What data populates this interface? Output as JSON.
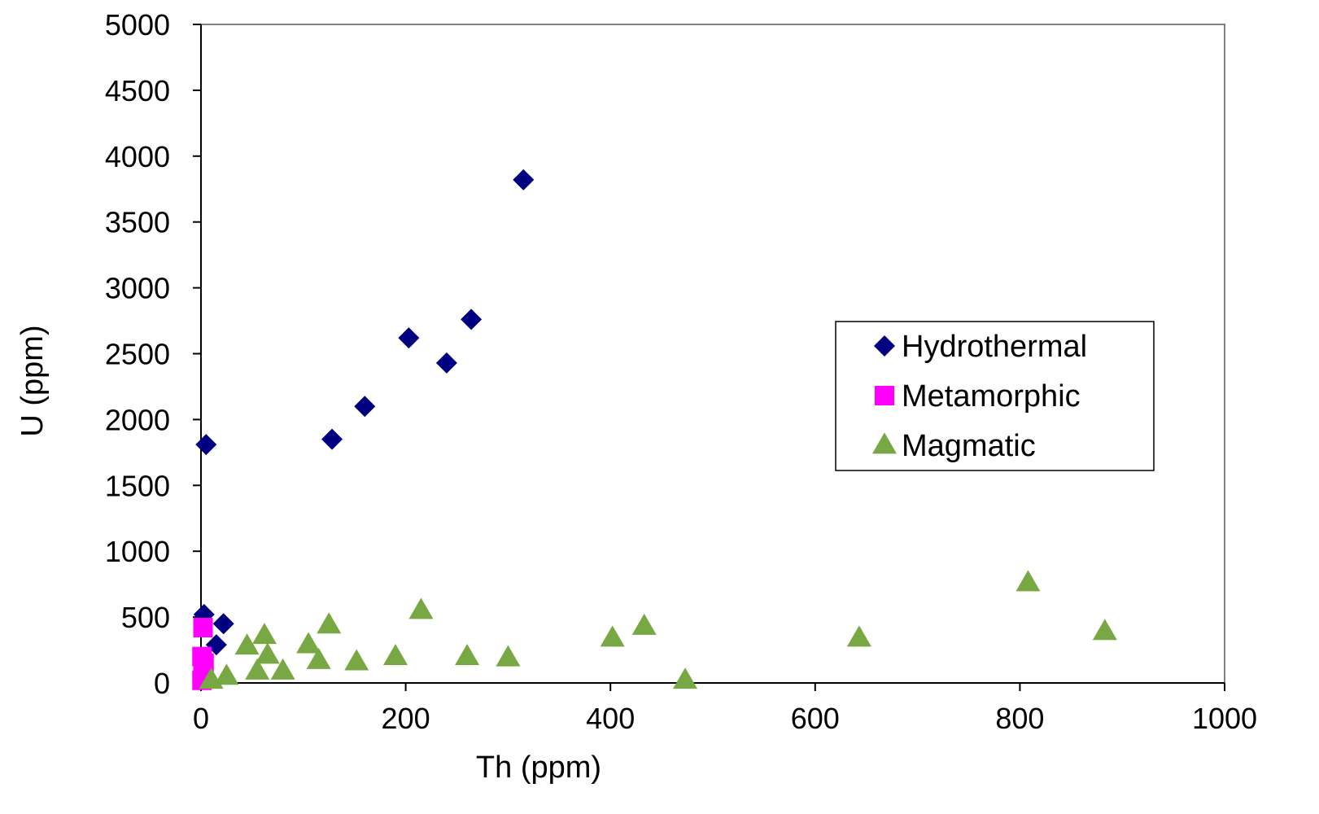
{
  "chart_data": {
    "type": "scatter",
    "xlabel": "Th (ppm)",
    "ylabel": "U (ppm)",
    "xlim": [
      0,
      1000
    ],
    "ylim": [
      0,
      5000
    ],
    "xticks": [
      0,
      200,
      400,
      600,
      800,
      1000
    ],
    "yticks": [
      0,
      500,
      1000,
      1500,
      2000,
      2500,
      3000,
      3500,
      4000,
      4500,
      5000
    ],
    "grid": false,
    "legend_position": "right",
    "series": [
      {
        "name": "Hydrothermal",
        "marker": "diamond",
        "color": "#000080",
        "points": [
          {
            "x": 5,
            "y": 1810
          },
          {
            "x": 3,
            "y": 520
          },
          {
            "x": 22,
            "y": 450
          },
          {
            "x": 15,
            "y": 290
          },
          {
            "x": 128,
            "y": 1850
          },
          {
            "x": 160,
            "y": 2100
          },
          {
            "x": 203,
            "y": 2620
          },
          {
            "x": 240,
            "y": 2430
          },
          {
            "x": 264,
            "y": 2760
          },
          {
            "x": 315,
            "y": 3820
          }
        ]
      },
      {
        "name": "Metamorphic",
        "marker": "square",
        "color": "#FF00FF",
        "points": [
          {
            "x": 2,
            "y": 420
          },
          {
            "x": 1,
            "y": 200
          },
          {
            "x": 3,
            "y": 150
          },
          {
            "x": 2,
            "y": 80
          },
          {
            "x": 1,
            "y": 20
          }
        ]
      },
      {
        "name": "Magmatic",
        "marker": "triangle",
        "color": "#77A844",
        "points": [
          {
            "x": 10,
            "y": 20
          },
          {
            "x": 25,
            "y": 50
          },
          {
            "x": 45,
            "y": 280
          },
          {
            "x": 55,
            "y": 90
          },
          {
            "x": 62,
            "y": 360
          },
          {
            "x": 65,
            "y": 210
          },
          {
            "x": 80,
            "y": 90
          },
          {
            "x": 105,
            "y": 290
          },
          {
            "x": 115,
            "y": 170
          },
          {
            "x": 125,
            "y": 440
          },
          {
            "x": 152,
            "y": 160
          },
          {
            "x": 190,
            "y": 200
          },
          {
            "x": 215,
            "y": 550
          },
          {
            "x": 260,
            "y": 200
          },
          {
            "x": 300,
            "y": 190
          },
          {
            "x": 402,
            "y": 340
          },
          {
            "x": 433,
            "y": 430
          },
          {
            "x": 473,
            "y": 20
          },
          {
            "x": 643,
            "y": 340
          },
          {
            "x": 808,
            "y": 760
          },
          {
            "x": 883,
            "y": 390
          }
        ]
      }
    ]
  }
}
